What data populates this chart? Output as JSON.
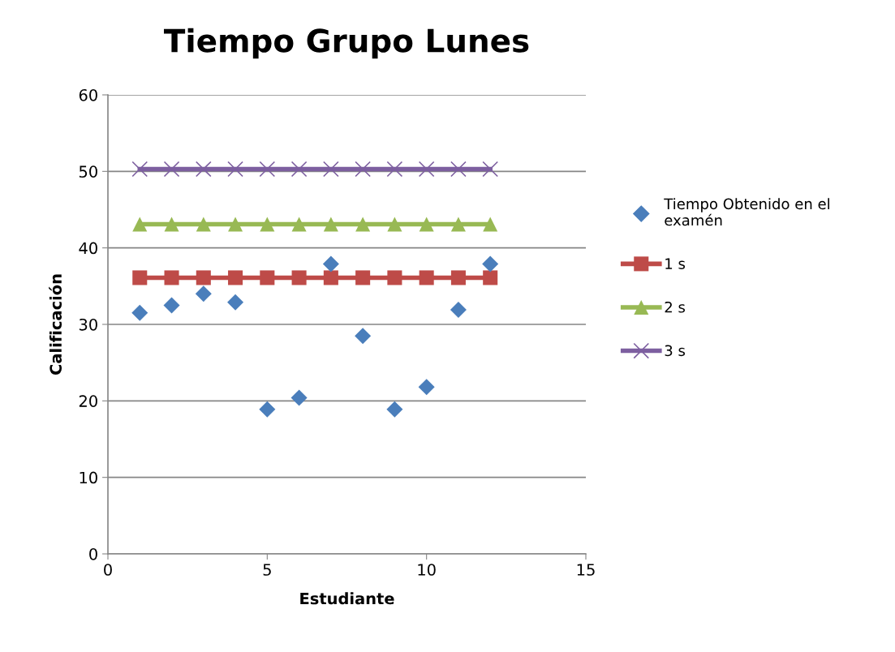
{
  "chart_data": {
    "type": "scatter",
    "title": "Tiempo Grupo Lunes",
    "xlabel": "Estudiante",
    "ylabel": "Calificación",
    "x": [
      1,
      2,
      3,
      4,
      5,
      6,
      7,
      8,
      9,
      10,
      11,
      12
    ],
    "series": [
      {
        "name": "Tiempo Obtenido en el examén",
        "marker": "diamond",
        "color": "#4a7ebb",
        "values": [
          31.5,
          32.5,
          34.0,
          32.9,
          18.9,
          20.4,
          37.9,
          28.5,
          18.9,
          21.8,
          31.9,
          37.9
        ]
      },
      {
        "name": "1 s",
        "type": "line",
        "marker": "square",
        "color": "#be4b48",
        "values": [
          36.1,
          36.1,
          36.1,
          36.1,
          36.1,
          36.1,
          36.1,
          36.1,
          36.1,
          36.1,
          36.1,
          36.1
        ]
      },
      {
        "name": "2 s",
        "type": "line",
        "marker": "triangle",
        "color": "#98b954",
        "values": [
          43.1,
          43.1,
          43.1,
          43.1,
          43.1,
          43.1,
          43.1,
          43.1,
          43.1,
          43.1,
          43.1,
          43.1
        ]
      },
      {
        "name": "3 s",
        "type": "line",
        "marker": "cross",
        "color": "#7d5fa0",
        "values": [
          50.3,
          50.3,
          50.3,
          50.3,
          50.3,
          50.3,
          50.3,
          50.3,
          50.3,
          50.3,
          50.3,
          50.3
        ]
      }
    ],
    "xlim": [
      0,
      15
    ],
    "xticks": [
      0,
      5,
      10,
      15
    ],
    "ylim": [
      0,
      60
    ],
    "yticks": [
      0,
      10,
      20,
      30,
      40,
      50,
      60
    ],
    "grid": "y",
    "legend": "right"
  }
}
